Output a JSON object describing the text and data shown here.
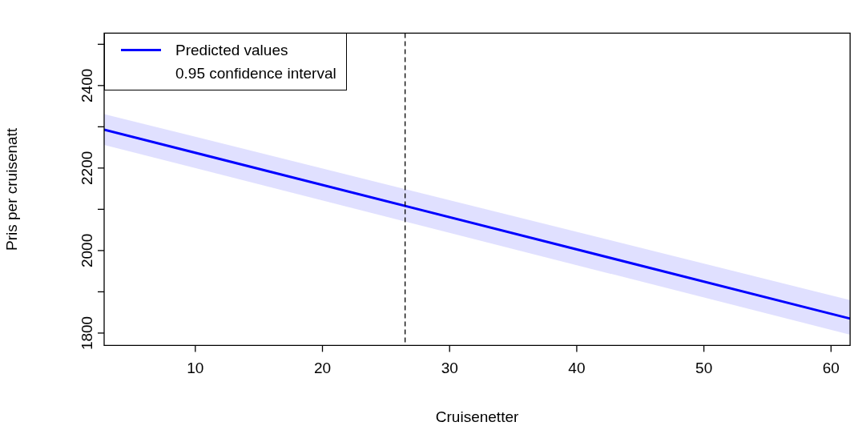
{
  "chart_data": {
    "type": "line",
    "xlabel": "Cruisenetter",
    "ylabel": "Pris per cruisenatt",
    "series": [
      {
        "name": "Predicted values",
        "color": "#0000ff",
        "x": [
          2.83,
          61.5
        ],
        "values": [
          2293,
          1835
        ],
        "lower": [
          2256,
          1796
        ],
        "upper": [
          2331,
          1880
        ]
      }
    ],
    "xlim": [
      2.83,
      61.5
    ],
    "xticks": [
      10,
      20,
      30,
      40,
      50,
      60
    ],
    "ylim": [
      1770,
      2527
    ],
    "yticks": [
      1800,
      {
        "value": 1900,
        "label": null
      },
      2000,
      {
        "value": 2100,
        "label": null
      },
      2200,
      {
        "value": 2300,
        "label": null
      },
      2400,
      {
        "value": 2500,
        "label": null
      }
    ],
    "ref_lines": [
      {
        "axis": "x",
        "value": 26.5,
        "line_style": "dashed",
        "color": "#000000"
      }
    ],
    "annotations": [
      "0.95 confidence interval"
    ],
    "legend": "top left",
    "grid": false,
    "marker": "none",
    "line_style": "solid"
  }
}
